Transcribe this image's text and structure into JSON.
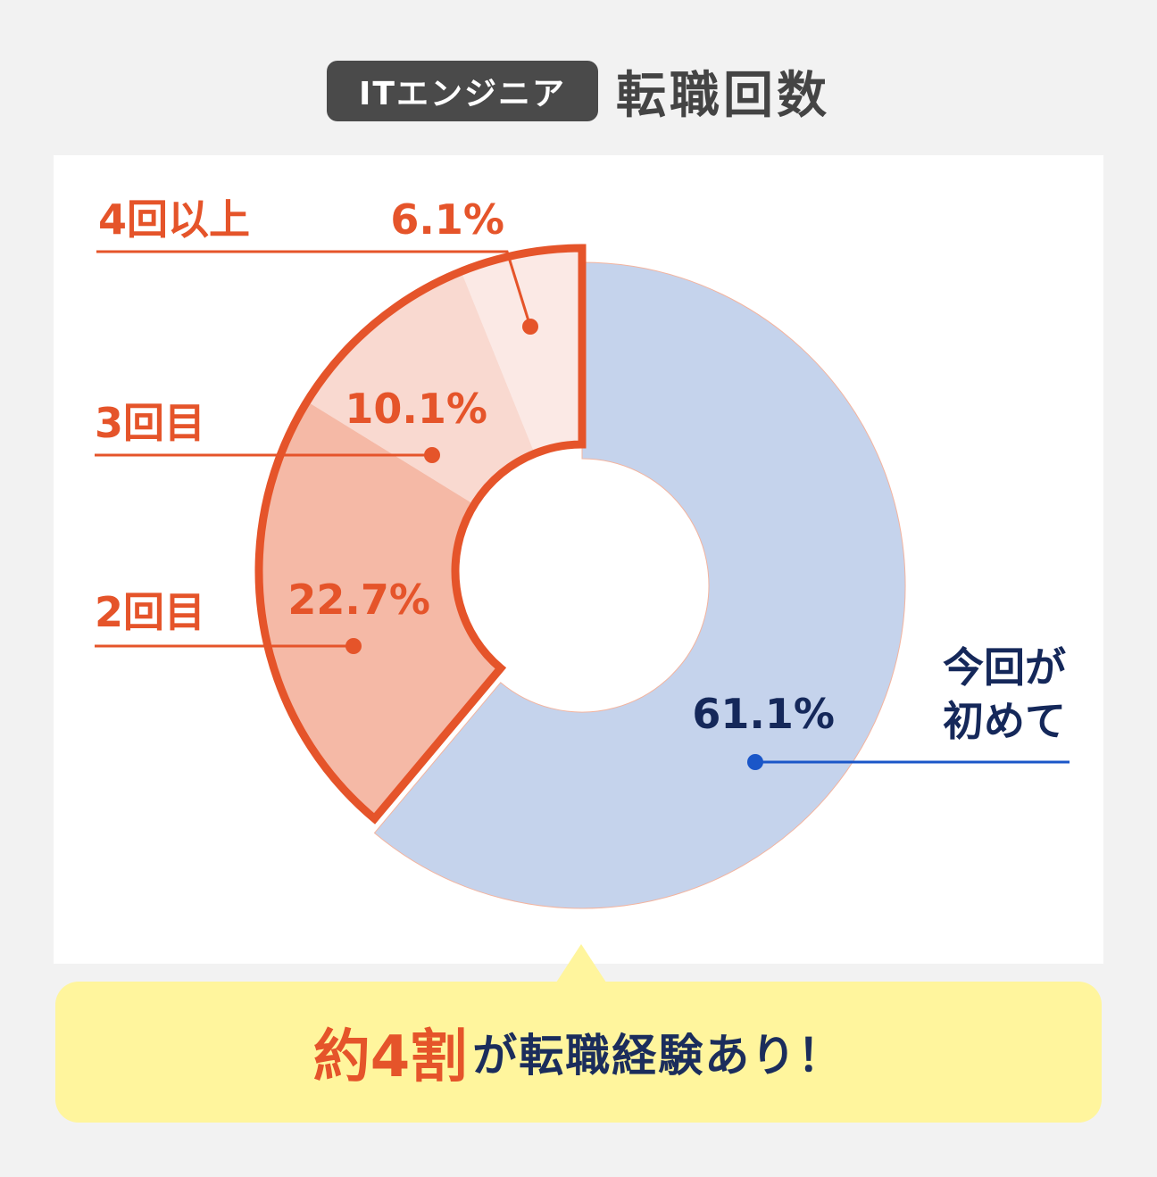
{
  "header": {
    "badge": "ITエンジニア",
    "title": "転職回数"
  },
  "chart_data": {
    "type": "pie",
    "title": "ITエンジニア 転職回数",
    "slices": [
      {
        "name": "今回が初めて",
        "name_lines": [
          "今回が",
          "初めて"
        ],
        "value": 61.1,
        "value_label": "61.1%",
        "color": "#c5d3ec"
      },
      {
        "name": "2回目",
        "name_lines": [
          "2回目"
        ],
        "value": 22.7,
        "value_label": "22.7%",
        "color": "#f5b9a6"
      },
      {
        "name": "3回目",
        "name_lines": [
          "3回目"
        ],
        "value": 10.1,
        "value_label": "10.1%",
        "color": "#f9d9d0"
      },
      {
        "name": "4回以上",
        "name_lines": [
          "4回以上"
        ],
        "value": 6.1,
        "value_label": "6.1%",
        "color": "#fbe9e5"
      }
    ],
    "accent_color": "#e5542a",
    "primary_label_color": "#15285a",
    "primary_line_color": "#1a56c8"
  },
  "callout": {
    "highlight": "約4割",
    "rest": "が転職経験あり！"
  }
}
